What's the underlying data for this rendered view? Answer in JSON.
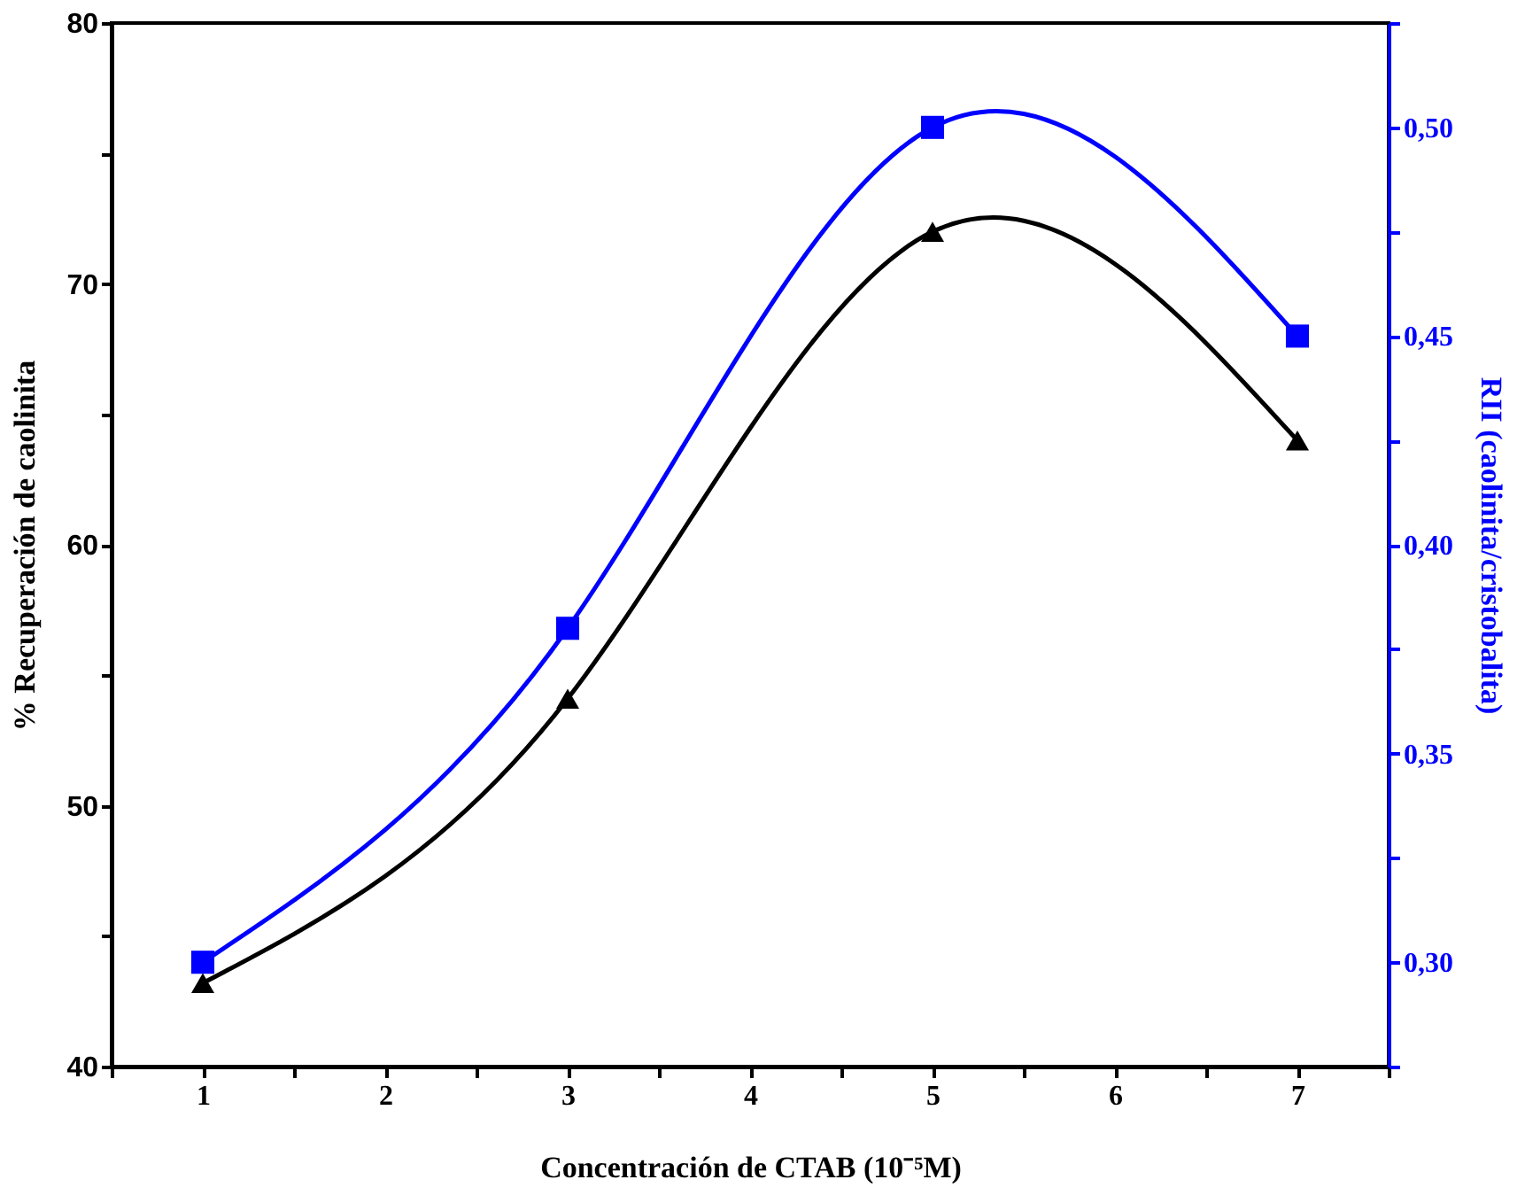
{
  "chart_data": {
    "type": "line",
    "xlabel": "Concentración de CTAB (10⁻⁵M)",
    "ylabel": "% Recuperación de caolinita",
    "y2label": "RII (caolinita/cristobalita)",
    "x": [
      1,
      3,
      5,
      7
    ],
    "series": [
      {
        "color": "#000000",
        "marker": "triangle",
        "values": [
          43.2,
          54.1,
          72,
          64
        ]
      },
      {
        "color": "#0000ff",
        "marker": "square",
        "axis": "y2",
        "values": [
          0.3,
          0.38,
          0.5,
          0.45
        ]
      }
    ],
    "xlim": [
      0.5,
      7.5
    ],
    "xticks": [
      {
        "value": 0.5,
        "label": null
      },
      1,
      {
        "value": 1.5,
        "label": null
      },
      2,
      {
        "value": 2.5,
        "label": null
      },
      3,
      {
        "value": 3.5,
        "label": null
      },
      4,
      {
        "value": 4.5,
        "label": null
      },
      5,
      {
        "value": 5.5,
        "label": null
      },
      6,
      {
        "value": 6.5,
        "label": null
      },
      7,
      {
        "value": 7.5,
        "label": null
      }
    ],
    "ylim": [
      40,
      80
    ],
    "yticks": [
      40,
      {
        "value": 45,
        "label": null
      },
      50,
      {
        "value": 55,
        "label": null
      },
      60,
      {
        "value": 65,
        "label": null
      },
      70,
      {
        "value": 75,
        "label": null
      },
      80
    ],
    "y2lim": [
      0.275,
      0.525
    ],
    "y2ticks": [
      {
        "value": 0.275,
        "label": null
      },
      {
        "value": 0.3,
        "label": "0,30"
      },
      {
        "value": 0.325,
        "label": null
      },
      {
        "value": 0.35,
        "label": "0,35"
      },
      {
        "value": 0.375,
        "label": null
      },
      {
        "value": 0.4,
        "label": "0,40"
      },
      {
        "value": 0.425,
        "label": null
      },
      {
        "value": 0.45,
        "label": "0,45"
      },
      {
        "value": 0.475,
        "label": null
      },
      {
        "value": 0.5,
        "label": "0,50"
      },
      {
        "value": 0.525,
        "label": null
      }
    ],
    "grid": false
  }
}
